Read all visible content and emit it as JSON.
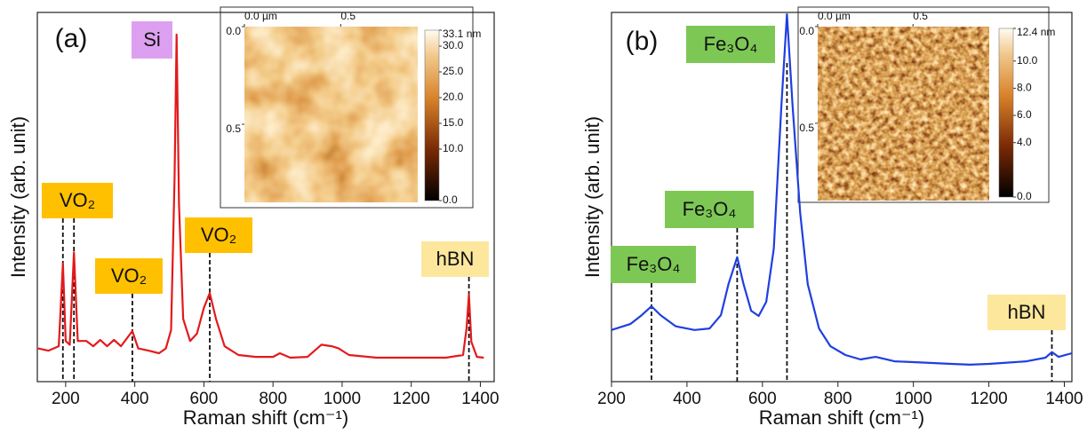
{
  "chart_data": [
    {
      "type": "line",
      "panel_label": "(a)",
      "x_label": "Raman shift (cm⁻¹)",
      "y_label": "Intensity (arb. unit)",
      "xlim": [
        118,
        1440
      ],
      "xticks": [
        200,
        400,
        600,
        800,
        1000,
        1200,
        1400
      ],
      "ylim": [
        0,
        100
      ],
      "color": "#e31a1c",
      "x": [
        120,
        150,
        180,
        192,
        200,
        212,
        224,
        235,
        260,
        280,
        300,
        320,
        340,
        360,
        393,
        410,
        440,
        470,
        490,
        505,
        515,
        521,
        528,
        540,
        560,
        580,
        600,
        617,
        635,
        660,
        700,
        750,
        800,
        820,
        850,
        900,
        940,
        970,
        990,
        1020,
        1100,
        1200,
        1300,
        1350,
        1360,
        1367,
        1374,
        1390,
        1410
      ],
      "values": [
        9,
        8.4,
        9.6,
        32,
        11,
        10,
        35,
        11,
        11,
        9.6,
        11.3,
        9.6,
        11.3,
        9.6,
        13.7,
        9,
        8.4,
        7.7,
        9,
        14,
        55,
        94,
        48,
        17,
        11,
        13,
        20,
        24,
        17,
        9.6,
        7.2,
        6.7,
        6.7,
        7.7,
        6.5,
        6.7,
        10,
        9.6,
        9,
        7.2,
        6.5,
        6.5,
        6.5,
        7.2,
        14.4,
        23.6,
        10.8,
        6.7,
        6.5
      ],
      "annotations": [
        {
          "text": "VO₂",
          "x": [
            192,
            224
          ],
          "color": "#ffc000"
        },
        {
          "text": "VO₂",
          "x": [
            393
          ],
          "color": "#ffc000"
        },
        {
          "text": "VO₂",
          "x": [
            617
          ],
          "color": "#ffc000"
        },
        {
          "text": "Si",
          "color": "#dda0f0"
        },
        {
          "text": "hBN",
          "x": [
            1367
          ],
          "color": "#fde79c"
        }
      ],
      "inset": {
        "xlim": [
          0,
          0.9
        ],
        "ylim": [
          0,
          0.9
        ],
        "xticks": [
          {
            "value": 0,
            "label": "0.0 µm"
          },
          {
            "value": 0.5,
            "label": "0.5"
          }
        ],
        "yticks": [
          {
            "value": 0,
            "label": "0.0"
          },
          {
            "value": 0.5,
            "label": "0.5"
          }
        ],
        "clim": [
          0,
          33.1
        ],
        "cticks": [
          {
            "value": 0,
            "label": "0.0"
          },
          {
            "value": 10,
            "label": "10.0"
          },
          {
            "value": 15,
            "label": "15.0"
          },
          {
            "value": 20,
            "label": "20.0"
          },
          {
            "value": 25,
            "label": "25.0"
          },
          {
            "value": 30,
            "label": "30.0"
          },
          {
            "value": 33.1,
            "label": "33.1 nm"
          }
        ]
      }
    },
    {
      "type": "line",
      "panel_label": "(b)",
      "x_label": "Raman shift (cm⁻¹)",
      "y_label": "Intensity (arb. unit)",
      "xlim": [
        200,
        1420
      ],
      "xticks": [
        200,
        400,
        600,
        800,
        1000,
        1200,
        1400
      ],
      "ylim": [
        0,
        100
      ],
      "color": "#1f3fe0",
      "x": [
        200,
        250,
        280,
        306,
        330,
        370,
        420,
        460,
        490,
        510,
        533,
        550,
        570,
        590,
        610,
        630,
        650,
        665,
        680,
        700,
        720,
        750,
        780,
        820,
        860,
        900,
        950,
        1000,
        1100,
        1150,
        1200,
        1300,
        1350,
        1367,
        1385,
        1420
      ],
      "values": [
        14,
        15.6,
        18,
        20.4,
        18,
        15,
        14,
        14.4,
        18,
        26.4,
        33.7,
        26.4,
        19.2,
        17.8,
        21.6,
        36,
        74.5,
        99.5,
        74.5,
        45.7,
        26.4,
        14.4,
        9.6,
        7.2,
        6,
        6.7,
        5.5,
        5.3,
        4.8,
        4.6,
        4.8,
        5.5,
        6.5,
        8,
        6.7,
        7.7
      ],
      "annotations": [
        {
          "text": "Fe₃O₄",
          "x": [
            306
          ],
          "color": "#7dc855"
        },
        {
          "text": "Fe₃O₄",
          "x": [
            533
          ],
          "color": "#7dc855"
        },
        {
          "text": "Fe₃O₄",
          "x": [
            665
          ],
          "color": "#7dc855"
        },
        {
          "text": "hBN",
          "x": [
            1367
          ],
          "color": "#fde79c"
        }
      ],
      "inset": {
        "xlim": [
          0,
          0.9
        ],
        "ylim": [
          0,
          0.9
        ],
        "xticks": [
          {
            "value": 0,
            "label": "0.0 µm"
          },
          {
            "value": 0.5,
            "label": "0.5"
          }
        ],
        "yticks": [
          {
            "value": 0,
            "label": "0.0"
          },
          {
            "value": 0.5,
            "label": "0.5"
          }
        ],
        "clim": [
          0,
          12.4
        ],
        "cticks": [
          {
            "value": 0,
            "label": "0.0"
          },
          {
            "value": 4,
            "label": "4.0"
          },
          {
            "value": 6,
            "label": "6.0"
          },
          {
            "value": 8,
            "label": "8.0"
          },
          {
            "value": 10,
            "label": "10.0"
          },
          {
            "value": 12.4,
            "label": "12.4 nm"
          }
        ]
      }
    }
  ]
}
